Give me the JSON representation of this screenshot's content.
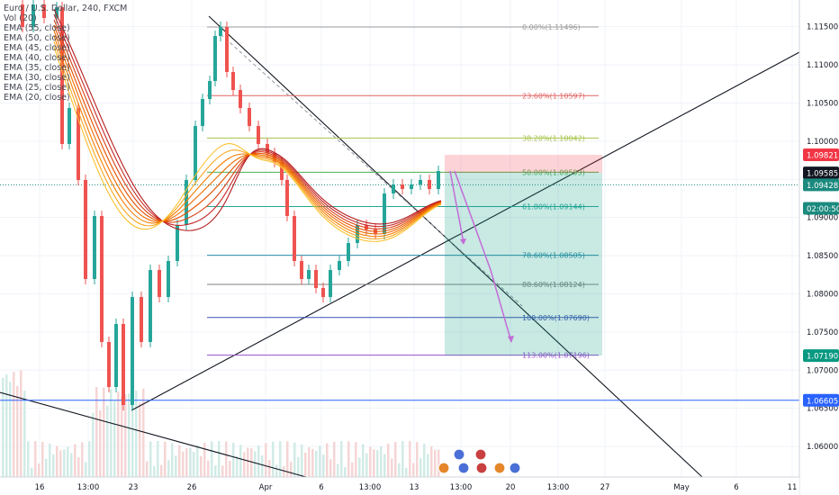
{
  "chart_data": {
    "type": "candlestick",
    "title": "Euro / U.S. Dollar, 240, FXCM",
    "indicators": [
      "Vol (20)",
      "EMA (55, close)",
      "EMA (50, close)",
      "EMA (45, close)",
      "EMA (40, close)",
      "EMA (35, close)",
      "EMA (30, close)",
      "EMA (25, close)",
      "EMA (20, close)"
    ],
    "x_ticks": [
      "16",
      "13:00",
      "23",
      "26",
      "Apr",
      "6",
      "13:00",
      "13",
      "13:00",
      "20",
      "13:00",
      "27",
      "May",
      "6",
      "11"
    ],
    "y_ticks": [
      "1.11500",
      "1.11000",
      "1.10500",
      "1.10000",
      "1.09500",
      "1.09000",
      "1.08500",
      "1.08000",
      "1.07500",
      "1.07000",
      "1.06500",
      "1.06000"
    ],
    "ylim": [
      1.056,
      1.1185
    ],
    "fib_levels": [
      {
        "label": "0.00%(1.11496)",
        "price": 1.11496,
        "color": "#9e9e9e"
      },
      {
        "label": "23.60%(1.10597)",
        "price": 1.10597,
        "color": "#e06666"
      },
      {
        "label": "38.20%(1.10042)",
        "price": 1.10042,
        "color": "#a6c34a"
      },
      {
        "label": "50.00%(1.09593)",
        "price": 1.09593,
        "color": "#4caf50"
      },
      {
        "label": "61.80%(1.09144)",
        "price": 1.09144,
        "color": "#26a69a"
      },
      {
        "label": "78.60%(1.08505)",
        "price": 1.08505,
        "color": "#2e8ca8"
      },
      {
        "label": "88.60%(1.08124)",
        "price": 1.08124,
        "color": "#808080"
      },
      {
        "label": "100.00%(1.07690)",
        "price": 1.0769,
        "color": "#3f51b5"
      },
      {
        "label": "113.00%(1.07196)",
        "price": 1.07196,
        "color": "#9c4fd0"
      }
    ],
    "price_badges": [
      {
        "label": "1.09821",
        "price": 1.09821,
        "bg": "#f23645",
        "fg": "#ffffff"
      },
      {
        "label": "1.09585",
        "price": 1.09585,
        "bg": "#131722",
        "fg": "#ffffff"
      },
      {
        "label": "1.09428",
        "price": 1.09428,
        "bg": "#1b8a7e",
        "fg": "#ffffff"
      },
      {
        "label": "02:00:50",
        "price": 1.0912,
        "bg": "#1b8a7e",
        "fg": "#ffffff"
      },
      {
        "label": "1.07190",
        "price": 1.0719,
        "bg": "#089981",
        "fg": "#ffffff"
      },
      {
        "label": "1.06605",
        "price": 1.06605,
        "bg": "#2962ff",
        "fg": "#ffffff"
      }
    ],
    "short_position": {
      "entry": 1.09585,
      "stop": 1.09821,
      "target": 1.0719
    },
    "current_price": 1.09428,
    "horizontal_line": 1.06605
  }
}
